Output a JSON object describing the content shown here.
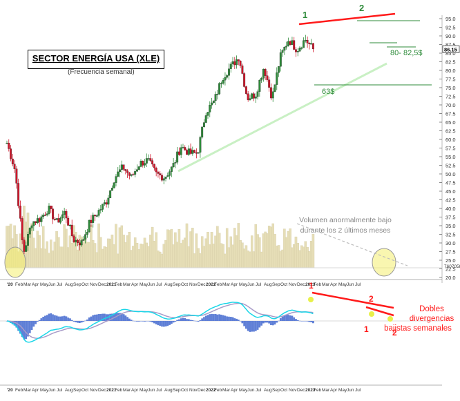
{
  "chart_data": [
    {
      "type": "candlestick",
      "title": "SECTOR ENERGÍA USA (XLE)",
      "subtitle": "(Frecuencia semanal)",
      "ylim": [
        20,
        95
      ],
      "y_ticks": [
        "20.0",
        "22.5",
        "25.0",
        "27.5",
        "30.0",
        "32.5",
        "35.0",
        "37.5",
        "40.0",
        "42.5",
        "45.0",
        "47.5",
        "50.0",
        "52.5",
        "55.0",
        "57.5",
        "60.0",
        "62.5",
        "65.0",
        "67.5",
        "70.0",
        "72.5",
        "75.0",
        "77.5",
        "80.0",
        "82.5",
        "85.0",
        "87.5",
        "90.0",
        "92.5",
        "95.0"
      ],
      "last_price_label": "86.15",
      "volume_axis_label": "7607058",
      "x_ticks": [
        "'20",
        "Feb",
        "Mar",
        "Apr",
        "May",
        "Jun",
        "Jul",
        "Aug",
        "Sep",
        "Oct",
        "Nov",
        "Dec",
        "2021",
        "Feb",
        "Mar",
        "Apr",
        "May",
        "Jun",
        "Jul",
        "Aug",
        "Sep",
        "Oct",
        "Nov",
        "Dec",
        "2022",
        "Feb",
        "Mar",
        "Apr",
        "May",
        "Jun",
        "Jul",
        "Aug",
        "Sep",
        "Oct",
        "Nov",
        "Dec",
        "2023",
        "Feb",
        "Mar",
        "Apr",
        "May",
        "Jun",
        "Jul"
      ],
      "close_anchors": [
        {
          "x": "2020-01",
          "y": 59
        },
        {
          "x": "2020-02",
          "y": 51
        },
        {
          "x": "2020-03",
          "y": 27
        },
        {
          "x": "2020-04",
          "y": 36
        },
        {
          "x": "2020-05",
          "y": 37
        },
        {
          "x": "2020-06",
          "y": 40
        },
        {
          "x": "2020-07",
          "y": 36
        },
        {
          "x": "2020-08",
          "y": 39
        },
        {
          "x": "2020-09",
          "y": 31
        },
        {
          "x": "2020-10",
          "y": 30
        },
        {
          "x": "2020-11",
          "y": 36
        },
        {
          "x": "2020-12",
          "y": 39
        },
        {
          "x": "2021-01",
          "y": 42
        },
        {
          "x": "2021-02",
          "y": 49
        },
        {
          "x": "2021-03",
          "y": 52
        },
        {
          "x": "2021-04",
          "y": 49
        },
        {
          "x": "2021-05",
          "y": 53
        },
        {
          "x": "2021-06",
          "y": 54
        },
        {
          "x": "2021-07",
          "y": 50
        },
        {
          "x": "2021-08",
          "y": 49
        },
        {
          "x": "2021-09",
          "y": 52
        },
        {
          "x": "2021-10",
          "y": 58
        },
        {
          "x": "2021-11",
          "y": 56
        },
        {
          "x": "2021-12",
          "y": 56
        },
        {
          "x": "2022-01",
          "y": 68
        },
        {
          "x": "2022-02",
          "y": 71
        },
        {
          "x": "2022-03",
          "y": 78
        },
        {
          "x": "2022-04",
          "y": 81
        },
        {
          "x": "2022-05",
          "y": 84
        },
        {
          "x": "2022-06",
          "y": 72
        },
        {
          "x": "2022-07",
          "y": 73
        },
        {
          "x": "2022-08",
          "y": 81
        },
        {
          "x": "2022-09",
          "y": 72
        },
        {
          "x": "2022-10",
          "y": 84
        },
        {
          "x": "2022-11",
          "y": 89
        },
        {
          "x": "2022-12",
          "y": 86
        },
        {
          "x": "2023-01",
          "y": 89
        },
        {
          "x": "2023-02",
          "y": 86
        }
      ],
      "annotations": {
        "peak_1": "1",
        "peak_2": "2",
        "support_low": "63$",
        "support_zone": "80- 82,5$",
        "volume_note_line1": "Volumen anormalmente bajo",
        "volume_note_line2": "durante los 2 últimos meses"
      },
      "colors": {
        "up": "#2e8b3a",
        "down": "#d1152a",
        "volume": "#e6deb7",
        "trend_red": "#ff1a1a",
        "support_green": "#2e8b3a",
        "uptrend": "#c9f0c4",
        "highlight": "#f4ef70"
      }
    },
    {
      "type": "macd",
      "x_ticks": [
        "'20",
        "Feb",
        "Mar",
        "Apr",
        "May",
        "Jun",
        "Jul",
        "Aug",
        "Sep",
        "Oct",
        "Nov",
        "Dec",
        "2021",
        "Feb",
        "Mar",
        "Apr",
        "May",
        "Jun",
        "Jul",
        "Aug",
        "Sep",
        "Oct",
        "Nov",
        "Dec",
        "2022",
        "Feb",
        "Mar",
        "Apr",
        "May",
        "Jun",
        "Jul",
        "Aug",
        "Sep",
        "Oct",
        "Nov",
        "Dec",
        "2023",
        "Feb",
        "Mar",
        "Apr",
        "May",
        "Jun",
        "Jul"
      ],
      "annotations": {
        "div_1_top": "1",
        "div_2_top": "2",
        "div_1_bottom": "1",
        "div_2_bottom": "2",
        "note_line1": "Dobles",
        "note_line2": "divergencias",
        "note_line3": "bajistas semanales"
      },
      "colors": {
        "macd": "#19d6e8",
        "signal": "#a89bc8",
        "histogram": "#5f7fd6",
        "divergence": "#ff1a1a"
      }
    }
  ]
}
